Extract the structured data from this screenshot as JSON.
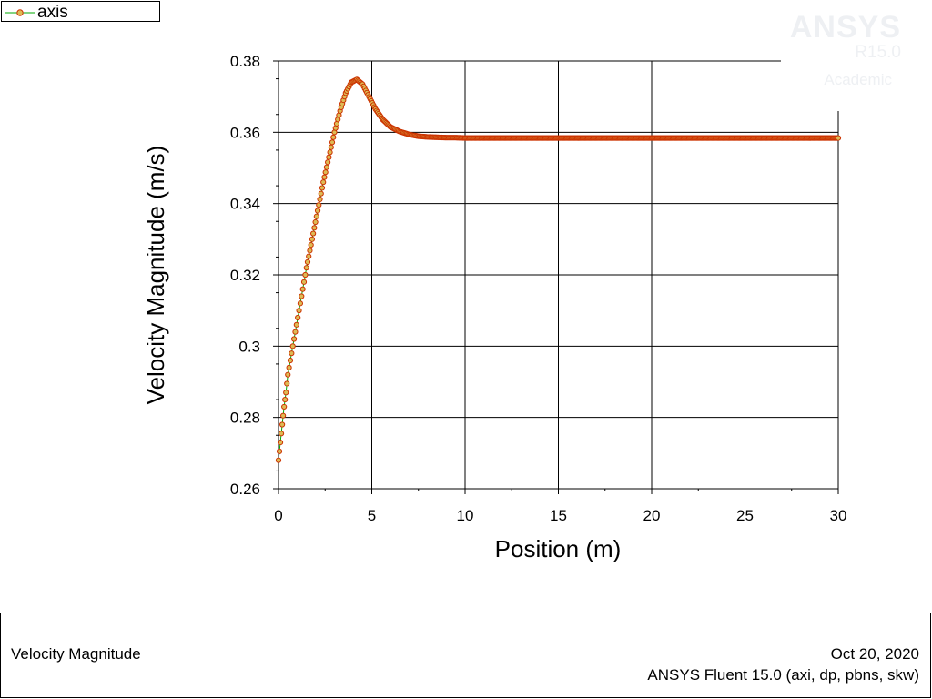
{
  "legend": {
    "label": "axis"
  },
  "watermark": {
    "brand": "ANSYS",
    "version": "R15.0",
    "edition": "Academic"
  },
  "chart_data": {
    "type": "scatter",
    "xlabel": "Position (m)",
    "ylabel": "Velocity Magnitude (m/s)",
    "xlim": [
      0,
      30
    ],
    "ylim": [
      0.26,
      0.38
    ],
    "x_ticks": [
      "0",
      "5",
      "10",
      "15",
      "20",
      "25",
      "30"
    ],
    "y_ticks": [
      "0.26",
      "0.28",
      "0.3",
      "0.32",
      "0.34",
      "0.36",
      "0.38"
    ],
    "grid": true,
    "legend_position": "top-left",
    "series": [
      {
        "name": "axis",
        "marker_stroke": "#cc3300",
        "marker_fill": "#ddbb55",
        "line_color": "#00aa00",
        "x": [
          0.0,
          0.1,
          0.2,
          0.3,
          0.4,
          0.5,
          0.7,
          0.9,
          1.1,
          1.3,
          1.5,
          1.8,
          2.1,
          2.4,
          2.7,
          3.0,
          3.3,
          3.6,
          3.9,
          4.2,
          4.5,
          4.8,
          5.2,
          5.6,
          6.0,
          6.5,
          7.0,
          7.5,
          8.0,
          8.5,
          9.0,
          9.5,
          10.0,
          10.5,
          11.0,
          12,
          13,
          14,
          15,
          16,
          17,
          18,
          19,
          20,
          21,
          22,
          23,
          24,
          25,
          26,
          27,
          28,
          29,
          30
        ],
        "y": [
          0.268,
          0.273,
          0.278,
          0.283,
          0.287,
          0.292,
          0.298,
          0.304,
          0.31,
          0.316,
          0.322,
          0.33,
          0.338,
          0.346,
          0.353,
          0.36,
          0.366,
          0.371,
          0.374,
          0.3748,
          0.3735,
          0.3705,
          0.3665,
          0.3635,
          0.3615,
          0.3602,
          0.3594,
          0.3589,
          0.3587,
          0.3586,
          0.3585,
          0.3585,
          0.3584,
          0.3584,
          0.3584,
          0.3584,
          0.3584,
          0.3584,
          0.3584,
          0.3584,
          0.3584,
          0.3584,
          0.3584,
          0.3584,
          0.3584,
          0.3584,
          0.3584,
          0.3584,
          0.3584,
          0.3584,
          0.3584,
          0.3584,
          0.3584,
          0.3584
        ]
      }
    ]
  },
  "info": {
    "quantity": "Velocity Magnitude",
    "date": "Oct 20, 2020",
    "solver": "ANSYS Fluent 15.0 (axi, dp, pbns, skw)"
  }
}
